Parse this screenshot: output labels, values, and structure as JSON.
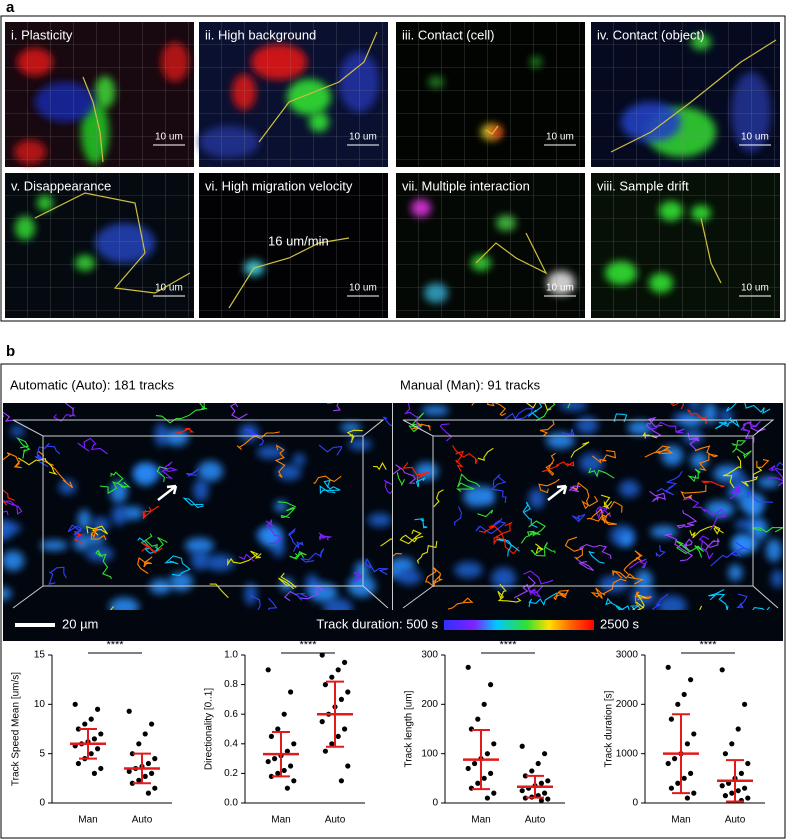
{
  "figure": {
    "panel_a": {
      "label": "a",
      "annotation": "16 um/min",
      "tiles": [
        {
          "label": "i. Plasticity",
          "scale_bar": "10 um"
        },
        {
          "label": "ii. High background",
          "scale_bar": "10 um"
        },
        {
          "label": "iii. Contact (cell)",
          "scale_bar": "10 um"
        },
        {
          "label": "iv. Contact (object)",
          "scale_bar": "10 um"
        },
        {
          "label": "v. Disappearance",
          "scale_bar": "10 um"
        },
        {
          "label": "vi. High migration velocity",
          "scale_bar": "10 um"
        },
        {
          "label": "vii. Multiple interaction",
          "scale_bar": "10 um"
        },
        {
          "label": "viii. Sample drift",
          "scale_bar": "10 um"
        }
      ]
    },
    "panel_b": {
      "label": "b",
      "views": [
        {
          "title": "Automatic (Auto): 181 tracks"
        },
        {
          "title": "Manual (Man): 91 tracks"
        }
      ],
      "scale_bar": "20 µm",
      "colorbar": {
        "title": "Track duration: 500 s",
        "max_label": "2500 s"
      }
    }
  },
  "chart_data": [
    {
      "type": "strip",
      "ylabel": "Track Speed Mean [um/s]",
      "categories": [
        "Man",
        "Auto"
      ],
      "significance": "****",
      "points": [
        [
          10,
          9.5,
          8.5,
          8,
          7.5,
          7,
          6.5,
          6.2,
          6,
          5.8,
          5.5,
          5,
          4.5,
          4,
          3.5,
          3
        ],
        [
          9.3,
          8,
          7,
          6,
          5,
          4.5,
          4,
          3.7,
          3.5,
          3.2,
          3,
          2.7,
          2.3,
          2,
          1.5,
          1
        ]
      ],
      "means": [
        6,
        3.5
      ],
      "sd": [
        1.5,
        1.5
      ],
      "ylim": [
        0,
        15
      ],
      "yticks": [
        0,
        5,
        10,
        15
      ],
      "color": "#000000",
      "error_color": "#e31a1c"
    },
    {
      "type": "strip",
      "ylabel": "Directionality [0..1]",
      "categories": [
        "Man",
        "Auto"
      ],
      "significance": "****",
      "points": [
        [
          0.9,
          0.75,
          0.6,
          0.5,
          0.45,
          0.4,
          0.35,
          0.32,
          0.3,
          0.28,
          0.25,
          0.22,
          0.2,
          0.18,
          0.15,
          0.1
        ],
        [
          1.0,
          0.95,
          0.9,
          0.85,
          0.8,
          0.75,
          0.7,
          0.65,
          0.6,
          0.55,
          0.5,
          0.45,
          0.4,
          0.35,
          0.25,
          0.15
        ]
      ],
      "means": [
        0.33,
        0.6
      ],
      "sd": [
        0.15,
        0.22
      ],
      "ylim": [
        0,
        1
      ],
      "yticks": [
        {
          "value": 0,
          "label": "0.0"
        },
        0.2,
        0.4,
        0.6,
        0.8,
        {
          "value": 1,
          "label": "1.0"
        }
      ],
      "color": "#000000",
      "error_color": "#e31a1c"
    },
    {
      "type": "strip",
      "ylabel": "Track length [um]",
      "categories": [
        "Man",
        "Auto"
      ],
      "significance": "****",
      "points": [
        [
          275,
          240,
          200,
          170,
          150,
          120,
          100,
          90,
          80,
          70,
          60,
          50,
          40,
          30,
          20,
          10
        ],
        [
          115,
          100,
          80,
          65,
          55,
          45,
          40,
          35,
          30,
          25,
          20,
          15,
          12,
          10,
          8,
          5
        ]
      ],
      "means": [
        88,
        33
      ],
      "sd": [
        60,
        22
      ],
      "ylim": [
        0,
        300
      ],
      "yticks": [
        0,
        100,
        200,
        300
      ],
      "color": "#000000",
      "error_color": "#e31a1c"
    },
    {
      "type": "strip",
      "ylabel": "Track duration [s]",
      "categories": [
        "Man",
        "Auto"
      ],
      "significance": "****",
      "points": [
        [
          2750,
          2500,
          2200,
          2000,
          1700,
          1400,
          1200,
          1000,
          900,
          800,
          600,
          500,
          400,
          300,
          200,
          100
        ],
        [
          2700,
          2000,
          1500,
          1200,
          1000,
          800,
          600,
          500,
          400,
          350,
          300,
          250,
          200,
          150,
          100,
          50
        ]
      ],
      "means": [
        1000,
        450
      ],
      "sd": [
        800,
        420
      ],
      "ylim": [
        0,
        3000
      ],
      "yticks": [
        0,
        1000,
        2000,
        3000
      ],
      "color": "#000000",
      "error_color": "#e31a1c"
    }
  ]
}
